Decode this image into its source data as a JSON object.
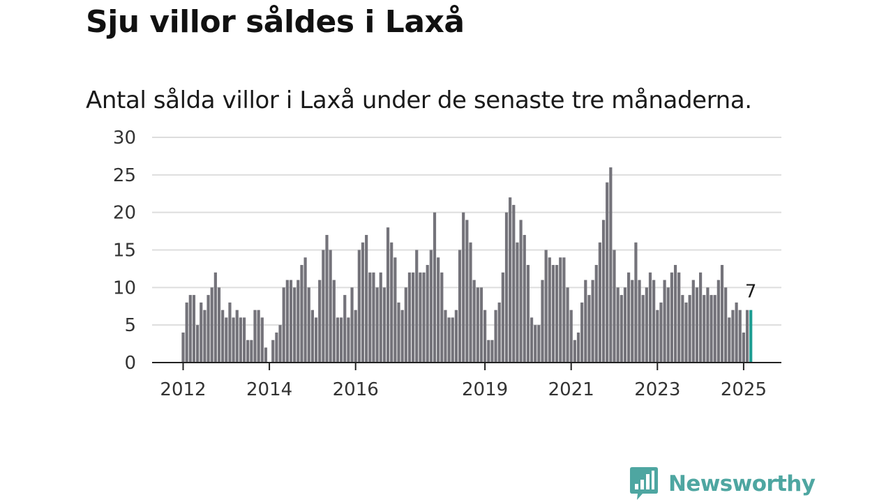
{
  "title": "Sju villor såldes i Laxå",
  "subtitle": "Antal sålda villor i Laxå under de senaste tre månaderna.",
  "brand": {
    "name": "Newsworthy",
    "icon": "newsworthy-logo-icon",
    "color": "#4ea6a1"
  },
  "colors": {
    "bar": "#74737a",
    "highlight": "#1f9e93",
    "grid": "#dddddd",
    "axis": "#222222"
  },
  "chart_data": {
    "type": "bar",
    "title": "Sju villor såldes i Laxå",
    "subtitle": "Antal sålda villor i Laxå under de senaste tre månaderna.",
    "xlabel": "",
    "ylabel": "",
    "ylim": [
      0,
      30
    ],
    "yticks": [
      "0",
      "5",
      "10",
      "15",
      "20",
      "25",
      "30"
    ],
    "xticks": [
      {
        "label": "2012",
        "year": 2012
      },
      {
        "label": "2014",
        "year": 2014
      },
      {
        "label": "2016",
        "year": 2016
      },
      {
        "label": "2019",
        "year": 2019
      },
      {
        "label": "2021",
        "year": 2021
      },
      {
        "label": "2023",
        "year": 2023
      },
      {
        "label": "2025",
        "year": 2025
      }
    ],
    "grid": true,
    "start_month": "2012-01",
    "values": [
      4,
      8,
      9,
      9,
      5,
      8,
      7,
      9,
      10,
      12,
      10,
      7,
      6,
      8,
      6,
      7,
      6,
      6,
      3,
      3,
      7,
      7,
      6,
      2,
      0,
      3,
      4,
      5,
      10,
      11,
      11,
      10,
      11,
      13,
      14,
      10,
      7,
      6,
      11,
      15,
      17,
      15,
      11,
      6,
      6,
      9,
      6,
      10,
      7,
      15,
      16,
      17,
      12,
      12,
      10,
      12,
      10,
      18,
      16,
      14,
      8,
      7,
      10,
      12,
      12,
      15,
      12,
      12,
      13,
      15,
      20,
      14,
      12,
      7,
      6,
      6,
      7,
      15,
      20,
      19,
      16,
      11,
      10,
      10,
      7,
      3,
      3,
      7,
      8,
      12,
      20,
      22,
      21,
      16,
      19,
      17,
      13,
      6,
      5,
      5,
      11,
      15,
      14,
      13,
      13,
      14,
      14,
      10,
      7,
      3,
      4,
      8,
      11,
      9,
      11,
      13,
      16,
      19,
      24,
      26,
      15,
      10,
      9,
      10,
      12,
      11,
      16,
      11,
      9,
      10,
      12,
      11,
      7,
      8,
      11,
      10,
      12,
      13,
      12,
      9,
      8,
      9,
      11,
      10,
      12,
      9,
      10,
      9,
      9,
      11,
      13,
      10,
      6,
      7,
      8,
      7,
      4,
      7,
      7
    ],
    "highlight": {
      "label": "7",
      "value": 7,
      "month": "2025-03"
    }
  }
}
